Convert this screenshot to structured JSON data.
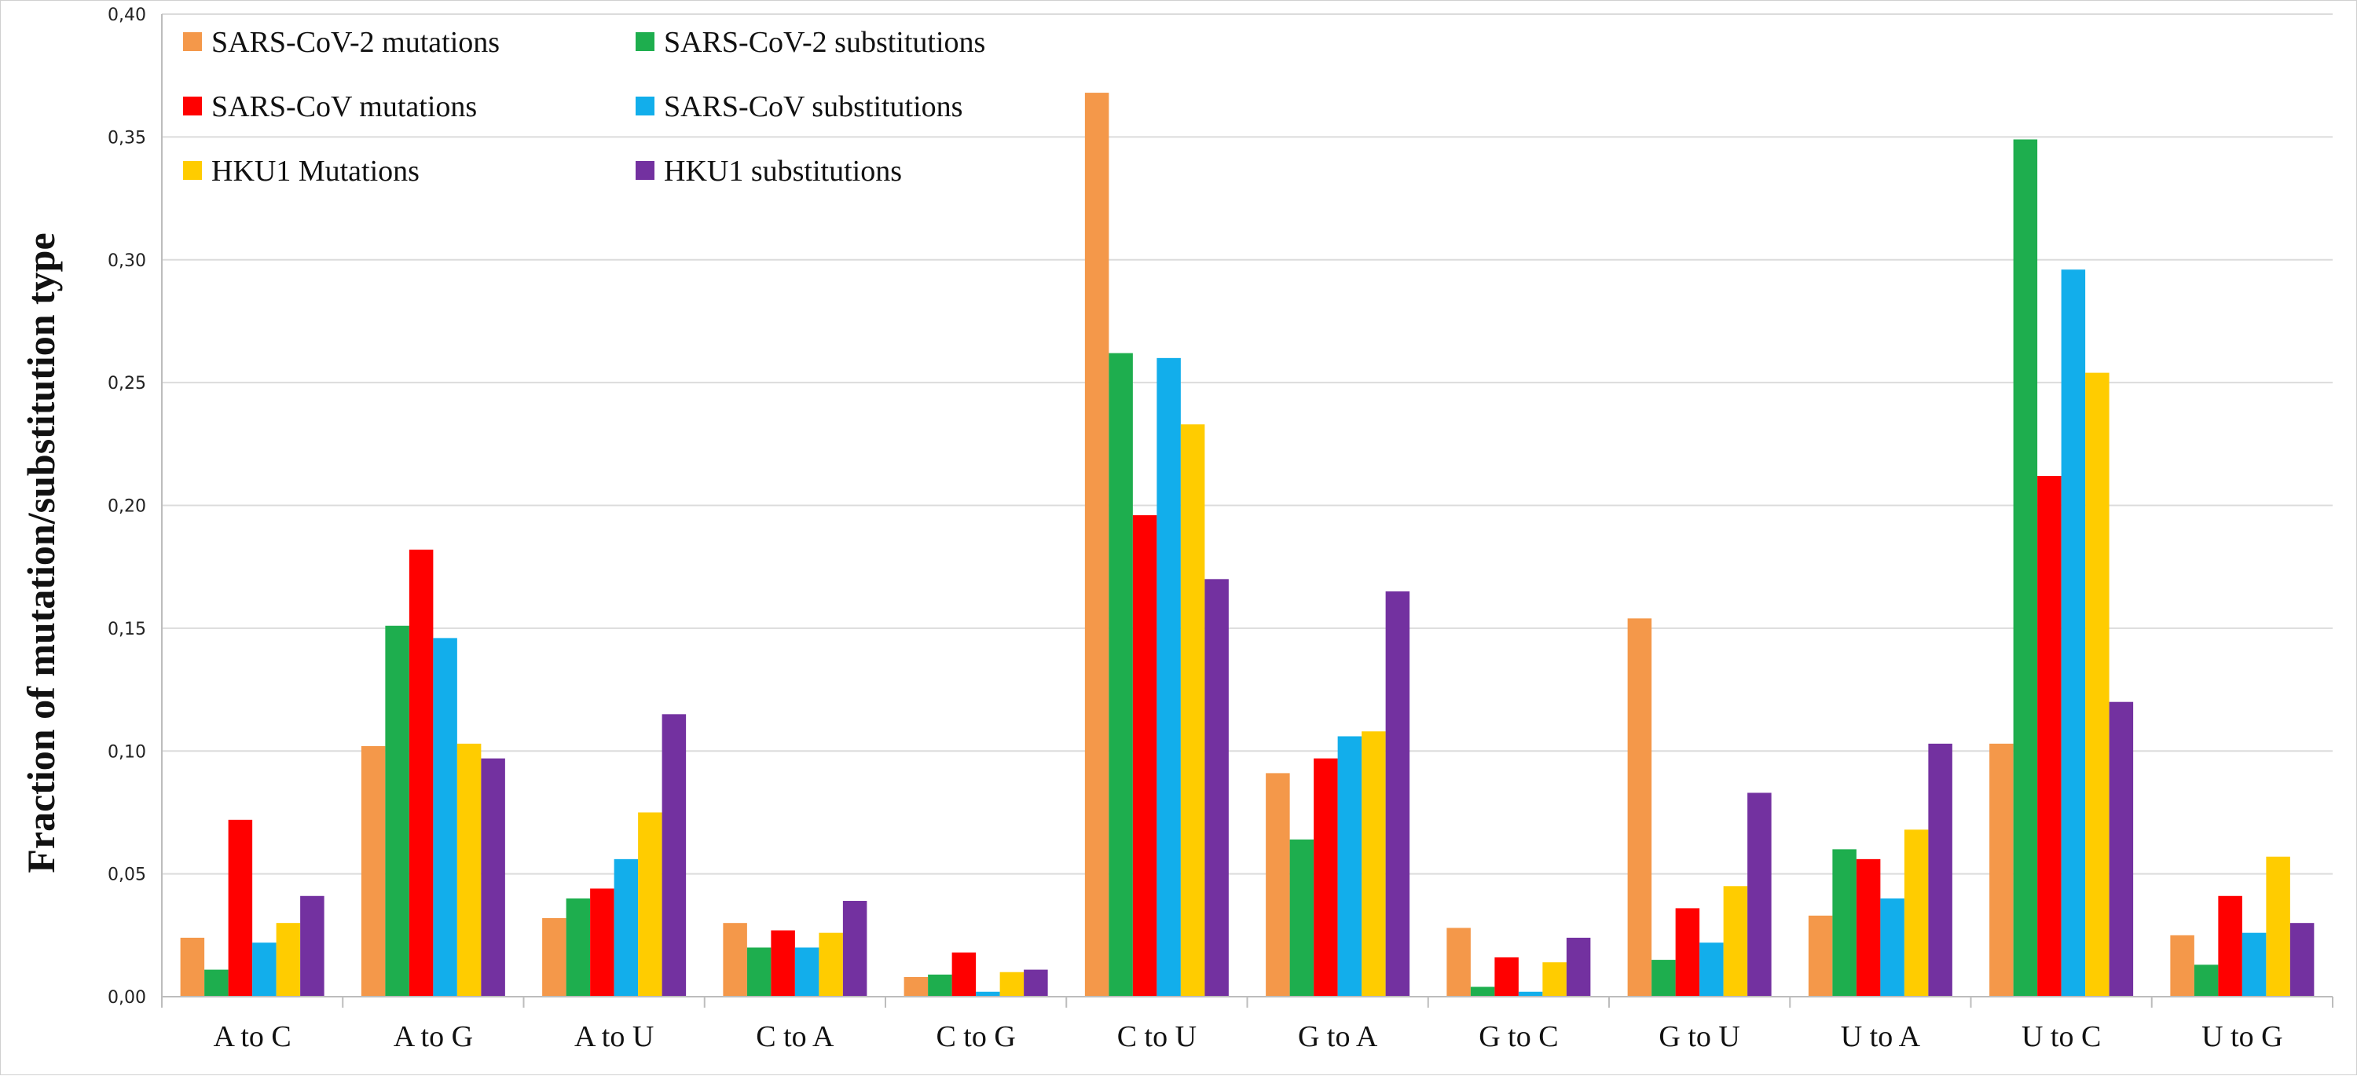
{
  "chart_data": {
    "type": "bar",
    "title": "",
    "xlabel": "",
    "ylabel": "Fraction of mutation/substitution  type",
    "ylim": [
      0,
      0.4
    ],
    "ytick_step": 0.05,
    "ytick_labels": [
      "0,00",
      "0,05",
      "0,10",
      "0,15",
      "0,20",
      "0,25",
      "0,30",
      "0,35",
      "0,40"
    ],
    "grid": true,
    "legend_position": "top-left",
    "categories": [
      "A to C",
      "A to G",
      "A to U",
      "C to A",
      "C to G",
      "C to U",
      "G to A",
      "G to C",
      "G to U",
      "U to A",
      "U to C",
      "U to G"
    ],
    "series": [
      {
        "name": "SARS-CoV-2 mutations",
        "color": "#F4984A",
        "values": [
          0.024,
          0.102,
          0.032,
          0.03,
          0.008,
          0.368,
          0.091,
          0.028,
          0.154,
          0.033,
          0.103,
          0.025
        ]
      },
      {
        "name": "SARS-CoV-2 substitutions",
        "color": "#1EAE4E",
        "values": [
          0.011,
          0.151,
          0.04,
          0.02,
          0.009,
          0.262,
          0.064,
          0.004,
          0.015,
          0.06,
          0.349,
          0.013
        ]
      },
      {
        "name": "SARS-CoV mutations",
        "color": "#FF0000",
        "values": [
          0.072,
          0.182,
          0.044,
          0.027,
          0.018,
          0.196,
          0.097,
          0.016,
          0.036,
          0.056,
          0.212,
          0.041
        ]
      },
      {
        "name": "SARS-CoV substitutions",
        "color": "#12AEEB",
        "values": [
          0.022,
          0.146,
          0.056,
          0.02,
          0.002,
          0.26,
          0.106,
          0.002,
          0.022,
          0.04,
          0.296,
          0.026
        ]
      },
      {
        "name": "HKU1 Mutations",
        "color": "#FFCC00",
        "values": [
          0.03,
          0.103,
          0.075,
          0.026,
          0.01,
          0.233,
          0.108,
          0.014,
          0.045,
          0.068,
          0.254,
          0.057
        ]
      },
      {
        "name": "HKU1 substitutions",
        "color": "#7331A0",
        "values": [
          0.041,
          0.097,
          0.115,
          0.039,
          0.011,
          0.17,
          0.165,
          0.024,
          0.083,
          0.103,
          0.12,
          0.03
        ]
      }
    ]
  }
}
